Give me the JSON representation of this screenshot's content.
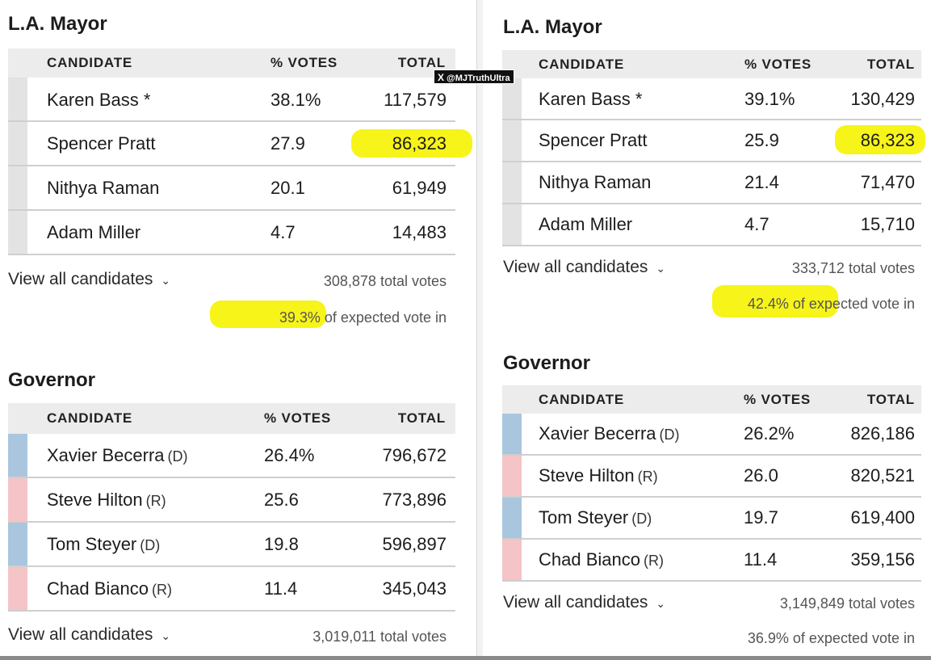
{
  "watermark": {
    "logo": "X",
    "handle": "@MJTruthUltra"
  },
  "colors": {
    "highlight": "#f6f300",
    "democrat": "#a9c6de",
    "republican": "#f4c4c7",
    "neutral": "#e3e3e3"
  },
  "left": {
    "mayor": {
      "title": "L.A. Mayor",
      "headers": {
        "candidate": "CANDIDATE",
        "pct": "% VOTES",
        "total": "TOTAL"
      },
      "rows": [
        {
          "name": "Karen Bass *",
          "party": "",
          "pct": "38.1%",
          "total": "117,579"
        },
        {
          "name": "Spencer Pratt",
          "party": "",
          "pct": "27.9",
          "total": "86,323"
        },
        {
          "name": "Nithya Raman",
          "party": "",
          "pct": "20.1",
          "total": "61,949"
        },
        {
          "name": "Adam Miller",
          "party": "",
          "pct": "4.7",
          "total": "14,483"
        }
      ],
      "view_all": "View all candidates",
      "total_votes": "308,878 total votes",
      "expected_pct": "39.3% of",
      "expected_rest": " expected vote in"
    },
    "governor": {
      "title": "Governor",
      "headers": {
        "candidate": "CANDIDATE",
        "pct": "% VOTES",
        "total": "TOTAL"
      },
      "rows": [
        {
          "name": "Xavier Becerra",
          "party": "(D)",
          "pct": "26.4%",
          "total": "796,672"
        },
        {
          "name": "Steve Hilton",
          "party": "(R)",
          "pct": "25.6",
          "total": "773,896"
        },
        {
          "name": "Tom Steyer",
          "party": "(D)",
          "pct": "19.8",
          "total": "596,897"
        },
        {
          "name": "Chad Bianco",
          "party": "(R)",
          "pct": "11.4",
          "total": "345,043"
        }
      ],
      "view_all": "View all candidates",
      "total_votes": "3,019,011 total votes"
    }
  },
  "right": {
    "mayor": {
      "title": "L.A. Mayor",
      "headers": {
        "candidate": "CANDIDATE",
        "pct": "% VOTES",
        "total": "TOTAL"
      },
      "rows": [
        {
          "name": "Karen Bass *",
          "party": "",
          "pct": "39.1%",
          "total": "130,429"
        },
        {
          "name": "Spencer Pratt",
          "party": "",
          "pct": "25.9",
          "total": "86,323"
        },
        {
          "name": "Nithya Raman",
          "party": "",
          "pct": "21.4",
          "total": "71,470"
        },
        {
          "name": "Adam Miller",
          "party": "",
          "pct": "4.7",
          "total": "15,710"
        }
      ],
      "view_all": "View all candidates",
      "total_votes": "333,712 total votes",
      "expected_pct": "42.4% of",
      "expected_rest": " expected vote in"
    },
    "governor": {
      "title": "Governor",
      "headers": {
        "candidate": "CANDIDATE",
        "pct": "% VOTES",
        "total": "TOTAL"
      },
      "rows": [
        {
          "name": "Xavier Becerra",
          "party": "(D)",
          "pct": "26.2%",
          "total": "826,186"
        },
        {
          "name": "Steve Hilton",
          "party": "(R)",
          "pct": "26.0",
          "total": "820,521"
        },
        {
          "name": "Tom Steyer",
          "party": "(D)",
          "pct": "19.7",
          "total": "619,400"
        },
        {
          "name": "Chad Bianco",
          "party": "(R)",
          "pct": "11.4",
          "total": "359,156"
        }
      ],
      "view_all": "View all candidates",
      "total_votes": "3,149,849 total votes",
      "expected": "36.9% of expected vote in"
    }
  }
}
